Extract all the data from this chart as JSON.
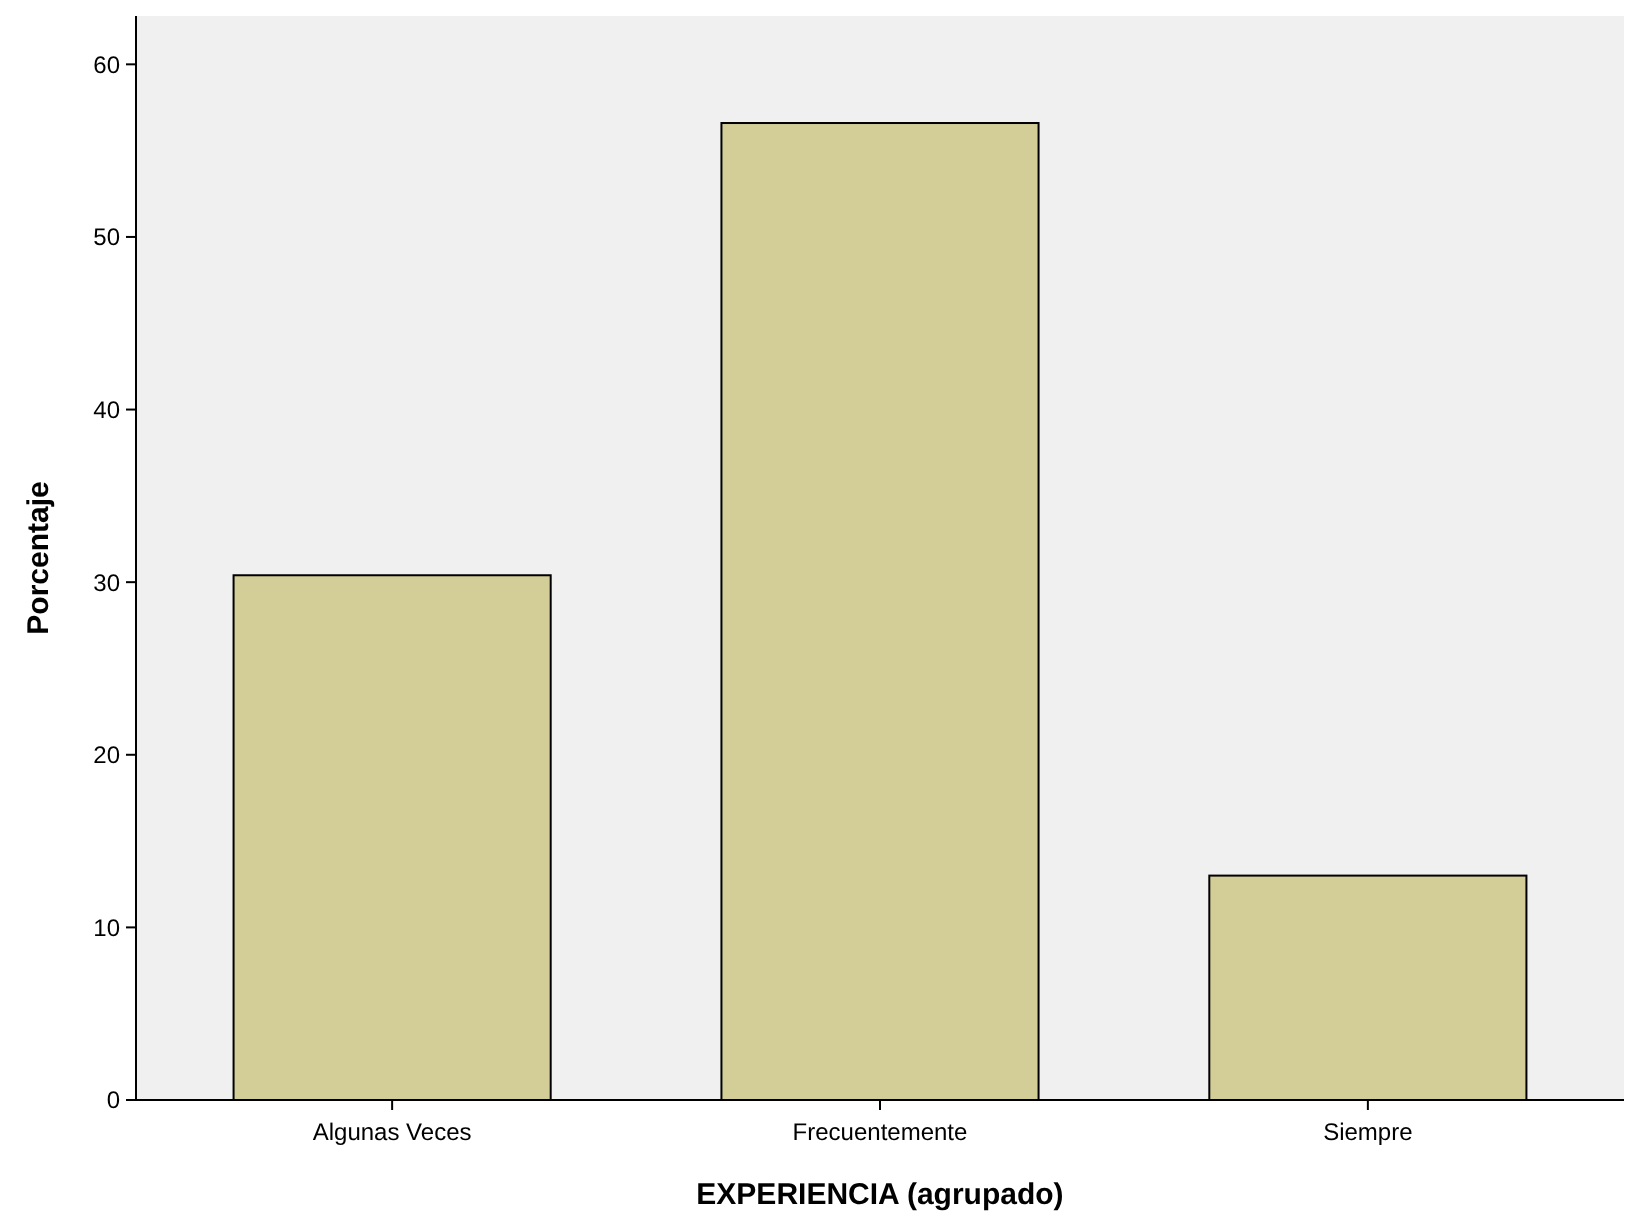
{
  "chart_data": {
    "type": "bar",
    "xlabel": "EXPERIENCIA (agrupado)",
    "ylabel": "Porcentaje",
    "categories": [
      "Algunas Veces",
      "Frecuentemente",
      "Siempre"
    ],
    "values": [
      30.4,
      56.6,
      13.0
    ],
    "color": "#d3ce97",
    "ylim": [
      0,
      62.8
    ],
    "yticks": [
      0,
      10,
      20,
      30,
      40,
      50,
      60
    ],
    "grid": false
  }
}
